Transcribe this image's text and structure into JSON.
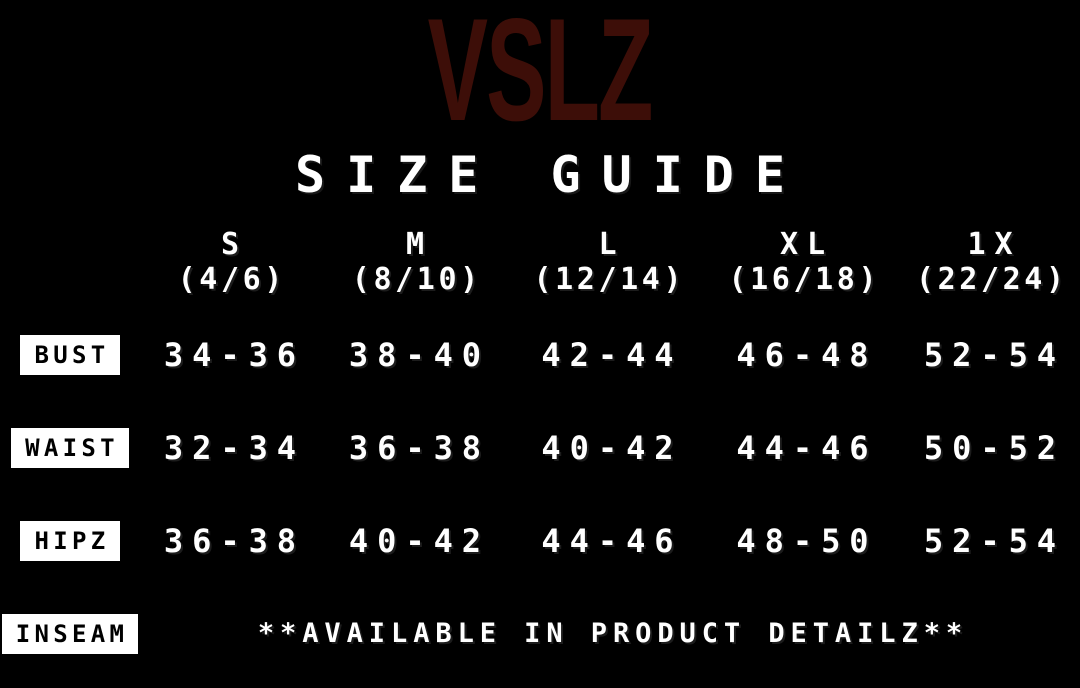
{
  "brand": "VSLZ",
  "title": "SIZE GUIDE",
  "colors": {
    "background": "#000000",
    "brand_text": "#3d0e08",
    "table_text": "#ffffff",
    "row_label_bg": "#ffffff",
    "row_label_text": "#000000"
  },
  "table": {
    "columns": [
      {
        "size": "S",
        "range": "(4/6)"
      },
      {
        "size": "M",
        "range": "(8/10)"
      },
      {
        "size": "L",
        "range": "(12/14)"
      },
      {
        "size": "XL",
        "range": "(16/18)"
      },
      {
        "size": "1X",
        "range": "(22/24)"
      }
    ],
    "rows": [
      {
        "label": "BUST",
        "values": [
          "34-36",
          "38-40",
          "42-44",
          "46-48",
          "52-54"
        ]
      },
      {
        "label": "WAIST",
        "values": [
          "32-34",
          "36-38",
          "40-42",
          "44-46",
          "50-52"
        ]
      },
      {
        "label": "HIPZ",
        "values": [
          "36-38",
          "40-42",
          "44-46",
          "48-50",
          "52-54"
        ]
      }
    ],
    "inseam": {
      "label": "INSEAM",
      "note": "**AVAILABLE IN PRODUCT DETAILZ**"
    }
  },
  "chart_data": {
    "type": "table",
    "title": "VSLZ SIZE GUIDE",
    "column_headers": [
      "S (4/6)",
      "M (8/10)",
      "L (12/14)",
      "XL (16/18)",
      "1X (22/24)"
    ],
    "row_headers": [
      "BUST",
      "WAIST",
      "HIPZ",
      "INSEAM"
    ],
    "cells": [
      [
        "34-36",
        "38-40",
        "42-44",
        "46-48",
        "52-54"
      ],
      [
        "32-34",
        "36-38",
        "40-42",
        "44-46",
        "50-52"
      ],
      [
        "36-38",
        "40-42",
        "44-46",
        "48-50",
        "52-54"
      ],
      [
        "**AVAILABLE IN PRODUCT DETAILZ**",
        "",
        "",
        "",
        ""
      ]
    ]
  }
}
